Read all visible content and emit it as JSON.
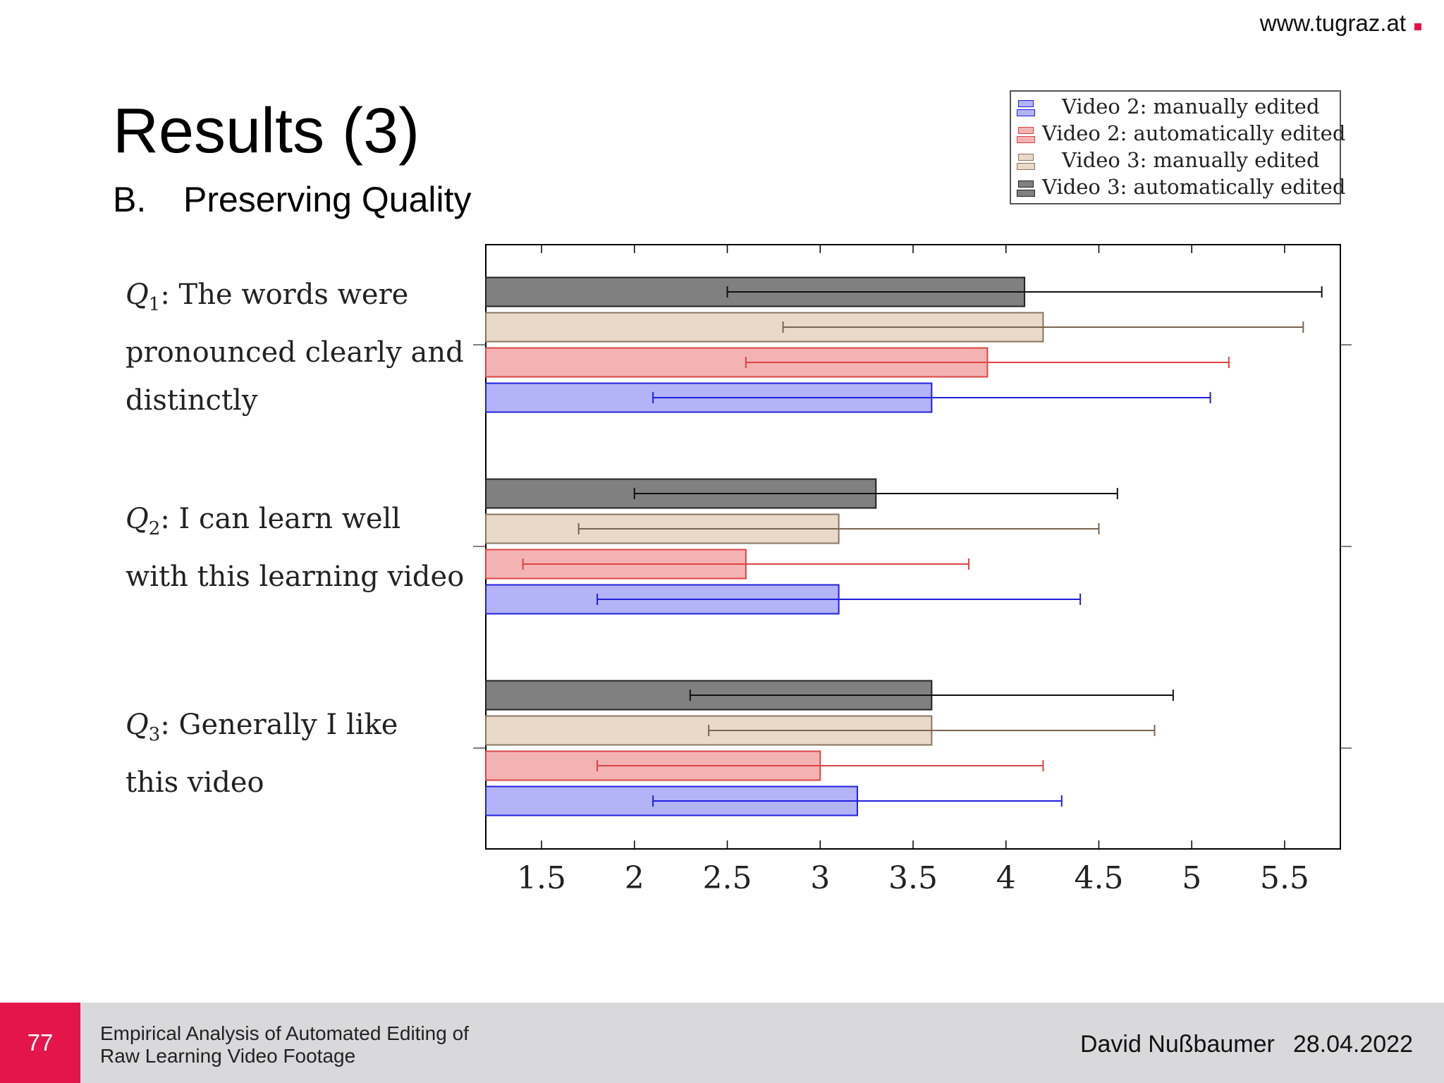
{
  "header": {
    "site_url": "www.tugraz.at"
  },
  "slide": {
    "title": "Results (3)",
    "subtitle_number": "B.",
    "subtitle": "Preserving Quality"
  },
  "questions": [
    {
      "symbol": "Q",
      "index": "1",
      "lines": [
        ": The words were",
        "pronounced clearly and",
        "distinctly"
      ]
    },
    {
      "symbol": "Q",
      "index": "2",
      "lines": [
        ": I can learn well",
        "with this learning video"
      ]
    },
    {
      "symbol": "Q",
      "index": "3",
      "lines": [
        ": Generally I like",
        "this video"
      ]
    }
  ],
  "footer": {
    "page_number": "77",
    "title_line1": "Empirical Analysis of Automated Editing of",
    "title_line2": "Raw Learning Video Footage",
    "author": "David Nußbaumer",
    "date": "28.04.2022"
  },
  "chart_data": {
    "type": "bar",
    "orientation": "horizontal",
    "categories": [
      "Q1",
      "Q2",
      "Q3"
    ],
    "xlim": [
      1.2,
      5.8
    ],
    "xticks": [
      1.5,
      2,
      2.5,
      3,
      3.5,
      4,
      4.5,
      5,
      5.5
    ],
    "xtick_labels": [
      "1.5",
      "2",
      "2.5",
      "3",
      "3.5",
      "4",
      "4.5",
      "5",
      "5.5"
    ],
    "legend_position": "top-right",
    "series": [
      {
        "name": "Video 2: manually edited",
        "fill": "#b3b3f7",
        "stroke": "#2020dd",
        "error_color": "#2020dd",
        "values": [
          3.6,
          3.1,
          3.2
        ],
        "error_low": [
          2.1,
          1.8,
          2.1
        ],
        "error_high": [
          5.1,
          4.4,
          4.3
        ]
      },
      {
        "name": "Video 2: automatically edited",
        "fill": "#f4b3b3",
        "stroke": "#dd4444",
        "error_color": "#dd4444",
        "values": [
          3.9,
          2.6,
          3.0
        ],
        "error_low": [
          2.6,
          1.4,
          1.8
        ],
        "error_high": [
          5.2,
          3.8,
          4.2
        ]
      },
      {
        "name": "Video 3: manually edited",
        "fill": "#e8d9c8",
        "stroke": "#8a7560",
        "error_color": "#7a6550",
        "values": [
          4.2,
          3.1,
          3.6
        ],
        "error_low": [
          2.8,
          1.7,
          2.4
        ],
        "error_high": [
          5.6,
          4.5,
          4.8
        ]
      },
      {
        "name": "Video 3: automatically edited",
        "fill": "#808080",
        "stroke": "#222222",
        "error_color": "#111111",
        "values": [
          4.1,
          3.3,
          3.6
        ],
        "error_low": [
          2.5,
          2.0,
          2.3
        ],
        "error_high": [
          5.7,
          4.6,
          4.9
        ]
      }
    ]
  }
}
